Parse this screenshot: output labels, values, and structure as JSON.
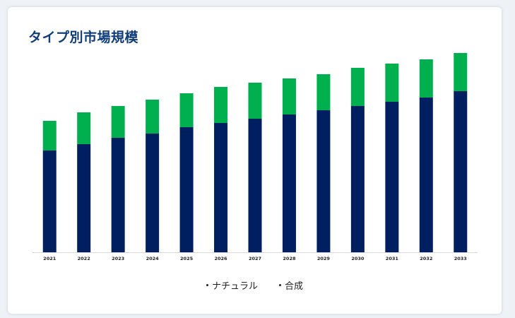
{
  "card": {
    "title": "タイプ別市場規模"
  },
  "colors": {
    "title": "#0f3d7a",
    "natural": "#001f60",
    "synthetic": "#00b04f",
    "axis": "#d9d9d9"
  },
  "chart_data": {
    "type": "bar",
    "stacked": true,
    "title": "タイプ別市場規模",
    "categories": [
      "2021",
      "2022",
      "2023",
      "2024",
      "2025",
      "2026",
      "2027",
      "2028",
      "2029",
      "2030",
      "2031",
      "2032",
      "2033"
    ],
    "series": [
      {
        "name": "ナチュラル",
        "color": "#001f60",
        "values": [
          4.8,
          5.1,
          5.4,
          5.6,
          5.9,
          6.1,
          6.3,
          6.5,
          6.7,
          6.9,
          7.1,
          7.3,
          7.6
        ]
      },
      {
        "name": "合成",
        "color": "#00b04f",
        "values": [
          1.4,
          1.5,
          1.5,
          1.6,
          1.6,
          1.7,
          1.7,
          1.7,
          1.7,
          1.8,
          1.8,
          1.8,
          1.8
        ]
      }
    ],
    "ylim": [
      0,
      10
    ],
    "grid": false,
    "legend": "bottom"
  }
}
